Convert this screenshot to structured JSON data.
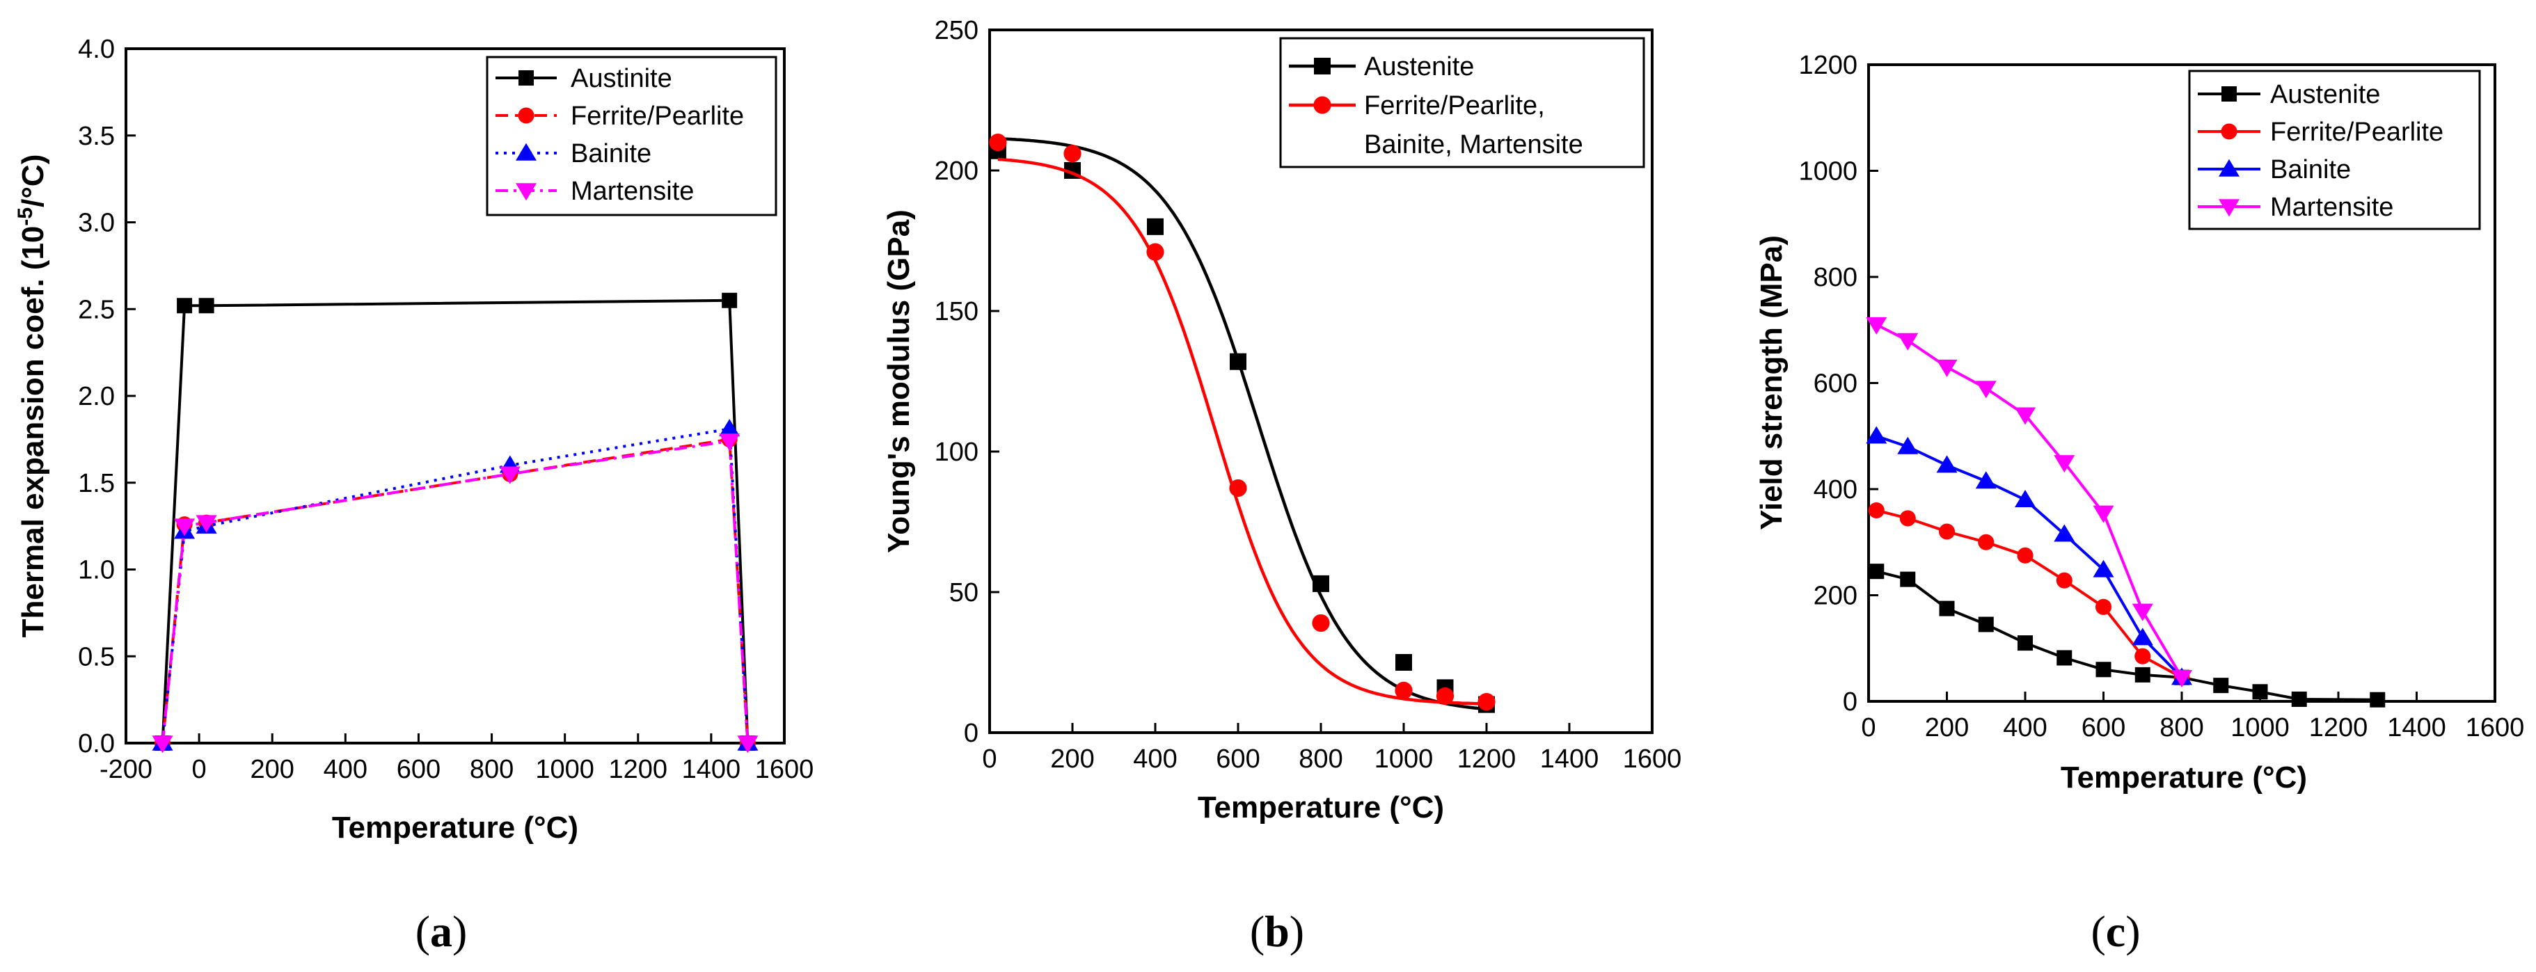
{
  "chart_data": [
    {
      "type": "line",
      "panel_label": "a",
      "title": "",
      "xlabel": "Temperature (°C)",
      "ylabel_pre": "Thermal expansion coef. (10",
      "ylabel_sup": "-5",
      "ylabel_post": "/°C)",
      "xlim": [
        -200,
        1600
      ],
      "ylim": [
        0.0,
        4.0
      ],
      "xticks": [
        -200,
        0,
        200,
        400,
        600,
        800,
        1000,
        1200,
        1400,
        1600
      ],
      "yticks": [
        0.0,
        0.5,
        1.0,
        1.5,
        2.0,
        2.5,
        3.0,
        3.5,
        4.0
      ],
      "xtick_labels": [
        "-200",
        "0",
        "200",
        "400",
        "600",
        "800",
        "1000",
        "1200",
        "1400",
        "1600"
      ],
      "ytick_labels": [
        "0.0",
        "0.5",
        "1.0",
        "1.5",
        "2.0",
        "2.5",
        "3.0",
        "3.5",
        "4.0"
      ],
      "legend_position": "top-right",
      "series": [
        {
          "name": "Austinite",
          "color": "#000000",
          "marker": "square",
          "dash": "solid",
          "x": [
            -100,
            -40,
            20,
            1450,
            1500
          ],
          "y": [
            0.0,
            2.52,
            2.52,
            2.55,
            0.0
          ]
        },
        {
          "name": "Ferrite/Pearlite",
          "color": "#ff0000",
          "marker": "circle",
          "dash": "dashed",
          "x": [
            -100,
            -40,
            20,
            850,
            1450,
            1500
          ],
          "y": [
            0.0,
            1.26,
            1.27,
            1.55,
            1.75,
            0.0
          ]
        },
        {
          "name": "Bainite",
          "color": "#0000ff",
          "marker": "triangle-up",
          "dash": "dotted",
          "x": [
            -100,
            -40,
            20,
            850,
            1450,
            1500
          ],
          "y": [
            0.0,
            1.22,
            1.25,
            1.6,
            1.81,
            0.0
          ]
        },
        {
          "name": "Martensite",
          "color": "#ff00ff",
          "marker": "triangle-down",
          "dash": "dashdot",
          "x": [
            -100,
            -40,
            20,
            850,
            1450,
            1500
          ],
          "y": [
            0.0,
            1.25,
            1.27,
            1.55,
            1.74,
            0.0
          ]
        }
      ]
    },
    {
      "type": "scatter",
      "panel_label": "b",
      "title": "",
      "xlabel": "Temperature (°C)",
      "ylabel": "Young's modulus (GPa)",
      "xlim": [
        0,
        1600
      ],
      "ylim": [
        0,
        250
      ],
      "xticks": [
        0,
        200,
        400,
        600,
        800,
        1000,
        1200,
        1400,
        1600
      ],
      "yticks": [
        0,
        50,
        100,
        150,
        200,
        250
      ],
      "xtick_labels": [
        "0",
        "200",
        "400",
        "600",
        "800",
        "1000",
        "1200",
        "1400",
        "1600"
      ],
      "ytick_labels": [
        "0",
        "50",
        "100",
        "150",
        "200",
        "250"
      ],
      "legend_position": "top-right",
      "legend_lines": [
        [
          "Austenite"
        ],
        [
          "Ferrite/Pearlite,",
          "Bainite, Martensite"
        ]
      ],
      "series": [
        {
          "name": "Austenite",
          "color": "#000000",
          "marker": "square",
          "x": [
            20,
            200,
            400,
            600,
            800,
            1000,
            1100,
            1200
          ],
          "y": [
            207,
            200,
            180,
            132,
            53,
            25,
            16,
            10
          ],
          "fit": {
            "A": 212,
            "B": 7,
            "x0": 650,
            "s": 110
          }
        },
        {
          "name": "Ferrite/Pearlite, Bainite, Martensite",
          "color": "#ff0000",
          "marker": "circle",
          "x": [
            20,
            200,
            400,
            600,
            800,
            1000,
            1100,
            1200
          ],
          "y": [
            210,
            206,
            171,
            87,
            39,
            15,
            13,
            11
          ],
          "fit": {
            "A": 205,
            "B": 10,
            "x0": 545,
            "s": 100
          }
        }
      ]
    },
    {
      "type": "line",
      "panel_label": "c",
      "title": "",
      "xlabel": "Temperature (°C)",
      "ylabel": "Yield strength (MPa)",
      "xlim": [
        0,
        1600
      ],
      "ylim": [
        0,
        1200
      ],
      "xticks": [
        0,
        200,
        400,
        600,
        800,
        1000,
        1200,
        1400,
        1600
      ],
      "yticks": [
        0,
        200,
        400,
        600,
        800,
        1000,
        1200
      ],
      "xtick_labels": [
        "0",
        "200",
        "400",
        "600",
        "800",
        "1000",
        "1200",
        "1400",
        "1600"
      ],
      "ytick_labels": [
        "0",
        "200",
        "400",
        "600",
        "800",
        "1000",
        "1200"
      ],
      "legend_position": "top-right",
      "series": [
        {
          "name": "Austenite",
          "color": "#000000",
          "marker": "square",
          "x": [
            20,
            100,
            200,
            300,
            400,
            500,
            600,
            700,
            800,
            900,
            1000,
            1100,
            1300
          ],
          "y": [
            245,
            230,
            175,
            145,
            110,
            82,
            60,
            50,
            45,
            30,
            18,
            4,
            3
          ]
        },
        {
          "name": "Ferrite/Pearlite",
          "color": "#ff0000",
          "marker": "circle",
          "x": [
            20,
            100,
            200,
            300,
            400,
            500,
            600,
            700,
            800
          ],
          "y": [
            360,
            345,
            320,
            300,
            275,
            228,
            178,
            85,
            45
          ]
        },
        {
          "name": "Bainite",
          "color": "#0000ff",
          "marker": "triangle-up",
          "x": [
            20,
            100,
            200,
            300,
            400,
            500,
            600,
            700,
            800
          ],
          "y": [
            500,
            480,
            445,
            415,
            380,
            315,
            248,
            120,
            45
          ]
        },
        {
          "name": "Martensite",
          "color": "#ff00ff",
          "marker": "triangle-down",
          "x": [
            20,
            100,
            200,
            300,
            400,
            500,
            600,
            700,
            800
          ],
          "y": [
            710,
            680,
            630,
            590,
            540,
            450,
            355,
            170,
            45
          ]
        }
      ]
    }
  ],
  "captions": {
    "a": {
      "open": "(",
      "letter": "a",
      "close": ")"
    },
    "b": {
      "open": "(",
      "letter": "b",
      "close": ")"
    },
    "c": {
      "open": "(",
      "letter": "c",
      "close": ")"
    }
  }
}
